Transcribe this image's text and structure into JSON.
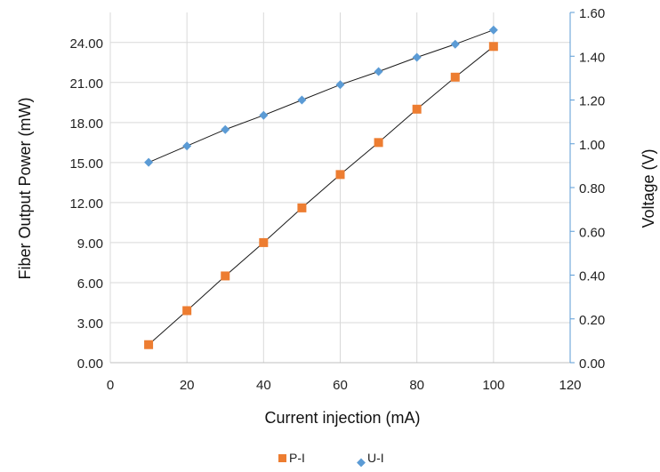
{
  "chart_data": {
    "type": "scatter",
    "title": "",
    "xlabel": "Current injection (mA)",
    "ylabel": "Fiber Output Power (mW)",
    "y2label": "Voltage (V)",
    "xlim": [
      0,
      120
    ],
    "ylim": [
      0,
      26.25
    ],
    "y2lim": [
      0,
      1.6
    ],
    "x_ticks": [
      "0",
      "20",
      "40",
      "60",
      "80",
      "100",
      "120"
    ],
    "y_ticks": [
      "0.00",
      "3.00",
      "6.00",
      "9.00",
      "12.00",
      "15.00",
      "18.00",
      "21.00",
      "24.00"
    ],
    "y2_ticks": [
      "0.00",
      "0.20",
      "0.40",
      "0.60",
      "0.80",
      "1.00",
      "1.20",
      "1.40",
      "1.60"
    ],
    "grid": true,
    "legend_position": "bottom",
    "series": [
      {
        "name": "P-I",
        "axis": "left",
        "marker": "square",
        "color": "#ed7d31",
        "x": [
          10,
          20,
          30,
          40,
          50,
          60,
          70,
          80,
          90,
          100
        ],
        "y": [
          1.35,
          3.9,
          6.5,
          9.0,
          11.6,
          14.1,
          16.5,
          19.0,
          21.4,
          23.7
        ]
      },
      {
        "name": "U-I",
        "axis": "right",
        "marker": "diamond",
        "color": "#5b9bd5",
        "x": [
          10,
          20,
          30,
          40,
          50,
          60,
          70,
          80,
          90,
          100
        ],
        "y": [
          0.915,
          0.99,
          1.065,
          1.13,
          1.2,
          1.27,
          1.33,
          1.395,
          1.455,
          1.52
        ]
      }
    ]
  }
}
